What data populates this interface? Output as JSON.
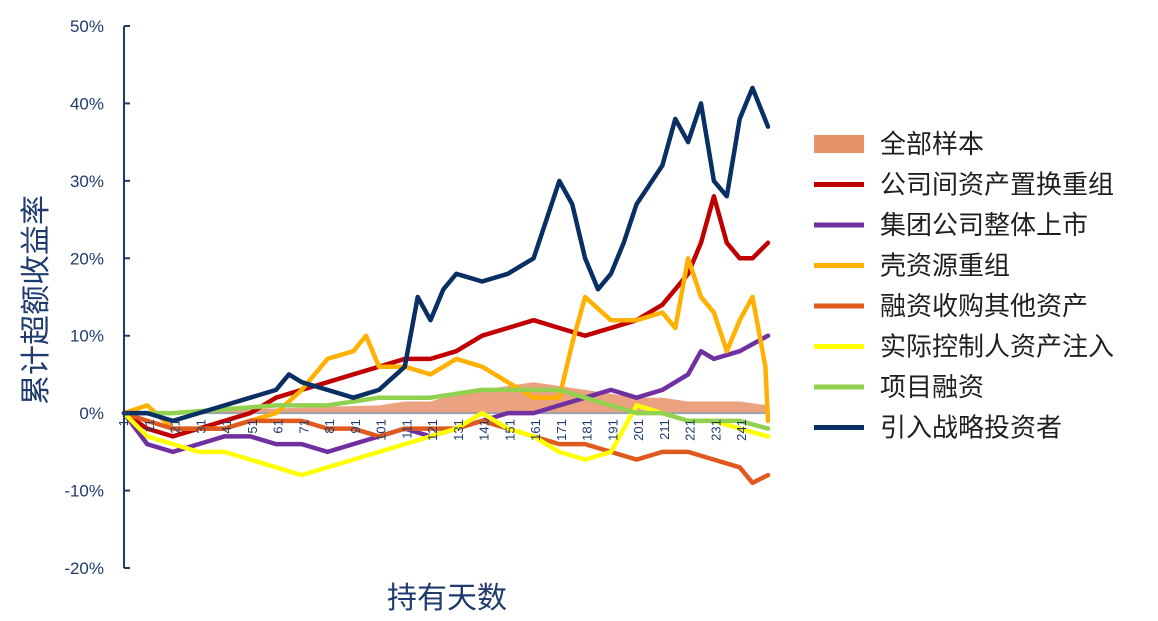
{
  "chart_data": {
    "type": "line",
    "xlabel": "持有天数",
    "ylabel": "累计超额收益率",
    "ylim": [
      -20,
      50
    ],
    "xlim": [
      1,
      251
    ],
    "y_ticks": [
      "50%",
      "40%",
      "30%",
      "20%",
      "10%",
      "0%",
      "-10%",
      "-20%"
    ],
    "y_tick_values": [
      50,
      40,
      30,
      20,
      10,
      0,
      -10,
      -20
    ],
    "x_ticks": [
      "1",
      "11",
      "21",
      "31",
      "41",
      "51",
      "61",
      "71",
      "81",
      "91",
      "101",
      "111",
      "121",
      "131",
      "141",
      "151",
      "161",
      "171",
      "181",
      "191",
      "201",
      "211",
      "221",
      "231",
      "241"
    ],
    "x_tick_values": [
      1,
      11,
      21,
      31,
      41,
      51,
      61,
      71,
      81,
      91,
      101,
      111,
      121,
      131,
      141,
      151,
      161,
      171,
      181,
      191,
      201,
      211,
      221,
      231,
      241
    ],
    "grid": false,
    "legend_position": "right",
    "series": [
      {
        "name": "全部样本",
        "kind": "area",
        "color": "#e8926a",
        "x": [
          1,
          20,
          40,
          60,
          80,
          100,
          110,
          120,
          130,
          140,
          150,
          160,
          170,
          180,
          190,
          200,
          210,
          220,
          230,
          240,
          251
        ],
        "y": [
          0,
          0.2,
          0.5,
          0.6,
          0.8,
          1.0,
          1.5,
          1.5,
          2.5,
          3.0,
          3.5,
          4.0,
          3.5,
          3.0,
          2.5,
          2.0,
          2.0,
          1.5,
          1.5,
          1.5,
          1.0
        ]
      },
      {
        "name": "公司间资产置换重组",
        "kind": "line",
        "color": "#c00000",
        "x": [
          1,
          10,
          20,
          30,
          40,
          50,
          60,
          70,
          80,
          90,
          100,
          110,
          120,
          130,
          140,
          150,
          160,
          170,
          180,
          190,
          200,
          210,
          215,
          220,
          225,
          230,
          235,
          240,
          245,
          251
        ],
        "y": [
          0,
          -2,
          -3,
          -2,
          -1,
          0,
          2,
          3,
          4,
          5,
          6,
          7,
          7,
          8,
          10,
          11,
          12,
          11,
          10,
          11,
          12,
          14,
          16,
          18,
          22,
          28,
          22,
          20,
          20,
          22
        ]
      },
      {
        "name": "集团公司整体上市",
        "kind": "line",
        "color": "#7030a0",
        "x": [
          1,
          10,
          20,
          30,
          40,
          50,
          60,
          70,
          80,
          90,
          100,
          110,
          120,
          130,
          140,
          150,
          160,
          170,
          180,
          190,
          200,
          210,
          220,
          225,
          230,
          240,
          251
        ],
        "y": [
          0,
          -4,
          -5,
          -4,
          -3,
          -3,
          -4,
          -4,
          -5,
          -4,
          -3,
          -2,
          -3,
          -2,
          -1,
          0,
          0,
          1,
          2,
          3,
          2,
          3,
          5,
          8,
          7,
          8,
          10
        ]
      },
      {
        "name": "壳资源重组",
        "kind": "line",
        "color": "#ffb000",
        "x": [
          1,
          10,
          20,
          30,
          40,
          50,
          60,
          70,
          80,
          90,
          95,
          100,
          110,
          120,
          130,
          140,
          150,
          160,
          170,
          175,
          180,
          190,
          200,
          210,
          215,
          220,
          225,
          230,
          235,
          240,
          245,
          250,
          251
        ],
        "y": [
          0,
          1,
          -2,
          -2,
          -2,
          -1,
          0,
          3,
          7,
          8,
          10,
          6,
          6,
          5,
          7,
          6,
          4,
          2,
          2,
          9,
          15,
          12,
          12,
          13,
          11,
          20,
          15,
          13,
          8,
          12,
          15,
          6,
          -1
        ]
      },
      {
        "name": "融资收购其他资产",
        "kind": "line",
        "color": "#e05a1e",
        "x": [
          1,
          10,
          20,
          30,
          40,
          50,
          60,
          70,
          80,
          90,
          100,
          110,
          120,
          130,
          140,
          150,
          160,
          170,
          180,
          190,
          200,
          210,
          220,
          230,
          240,
          245,
          251
        ],
        "y": [
          0,
          -1,
          -2,
          -2,
          -2,
          -1,
          -1,
          -1,
          -2,
          -2,
          -3,
          -2,
          -2,
          -2,
          -1,
          -2,
          -3,
          -4,
          -4,
          -5,
          -6,
          -5,
          -5,
          -6,
          -7,
          -9,
          -8
        ]
      },
      {
        "name": "实际控制人资产注入",
        "kind": "line",
        "color": "#ffff00",
        "x": [
          1,
          10,
          20,
          30,
          40,
          50,
          60,
          70,
          80,
          90,
          100,
          110,
          120,
          130,
          140,
          150,
          160,
          170,
          180,
          190,
          200,
          210,
          220,
          230,
          240,
          251
        ],
        "y": [
          0,
          -3,
          -4,
          -5,
          -5,
          -6,
          -7,
          -8,
          -7,
          -6,
          -5,
          -4,
          -3,
          -2,
          0,
          -2,
          -3,
          -5,
          -6,
          -5,
          1,
          0,
          -1,
          -1,
          -2,
          -3
        ]
      },
      {
        "name": "项目融资",
        "kind": "line",
        "color": "#92d050",
        "x": [
          1,
          20,
          40,
          60,
          80,
          100,
          120,
          140,
          150,
          160,
          170,
          180,
          190,
          200,
          210,
          220,
          230,
          240,
          251
        ],
        "y": [
          0,
          0,
          0.5,
          1,
          1,
          2,
          2,
          3,
          3,
          3,
          3,
          2,
          1,
          0,
          0,
          -1,
          -1,
          -1,
          -2
        ]
      },
      {
        "name": "引入战略投资者",
        "kind": "line",
        "color": "#0a2f63",
        "x": [
          1,
          10,
          20,
          30,
          40,
          50,
          60,
          65,
          70,
          80,
          90,
          100,
          110,
          115,
          120,
          125,
          130,
          140,
          150,
          160,
          165,
          170,
          175,
          180,
          185,
          190,
          195,
          200,
          210,
          215,
          220,
          225,
          230,
          235,
          240,
          245,
          251
        ],
        "y": [
          0,
          0,
          -1,
          0,
          1,
          2,
          3,
          5,
          4,
          3,
          2,
          3,
          6,
          15,
          12,
          16,
          18,
          17,
          18,
          20,
          25,
          30,
          27,
          20,
          16,
          18,
          22,
          27,
          32,
          38,
          35,
          40,
          30,
          28,
          38,
          42,
          37
        ]
      }
    ]
  }
}
